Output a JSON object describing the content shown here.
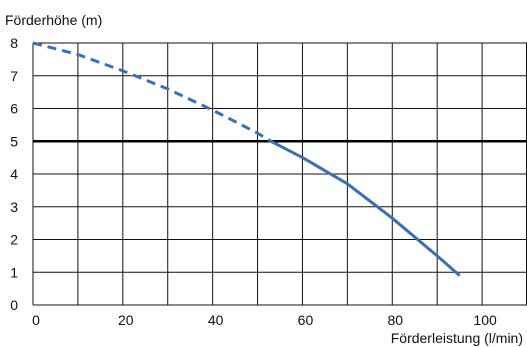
{
  "chart_data": {
    "type": "line",
    "title": "",
    "xlabel": "Förderleistung (l/min)",
    "ylabel": "Förderhöhe (m)",
    "xlim": [
      0,
      110
    ],
    "ylim": [
      0,
      8
    ],
    "x_ticks": [
      0,
      20,
      40,
      60,
      80,
      100
    ],
    "y_ticks": [
      0,
      1,
      2,
      3,
      4,
      5,
      6,
      7,
      8
    ],
    "grid": true,
    "vertical_gridlines": [
      0,
      10,
      20,
      30,
      40,
      50,
      60,
      70,
      80,
      90,
      100,
      110
    ],
    "reference_line": {
      "y": 5
    },
    "series": [
      {
        "style": "dashed",
        "color": "#3a6fb8",
        "x": [
          0,
          10,
          20,
          30,
          40,
          50,
          53
        ],
        "y": [
          8.0,
          7.65,
          7.15,
          6.6,
          5.95,
          5.25,
          5.0
        ]
      },
      {
        "style": "solid",
        "color": "#3a6fb8",
        "x": [
          53,
          60,
          70,
          80,
          90,
          95
        ],
        "y": [
          5.0,
          4.5,
          3.7,
          2.65,
          1.5,
          0.9
        ]
      }
    ]
  }
}
